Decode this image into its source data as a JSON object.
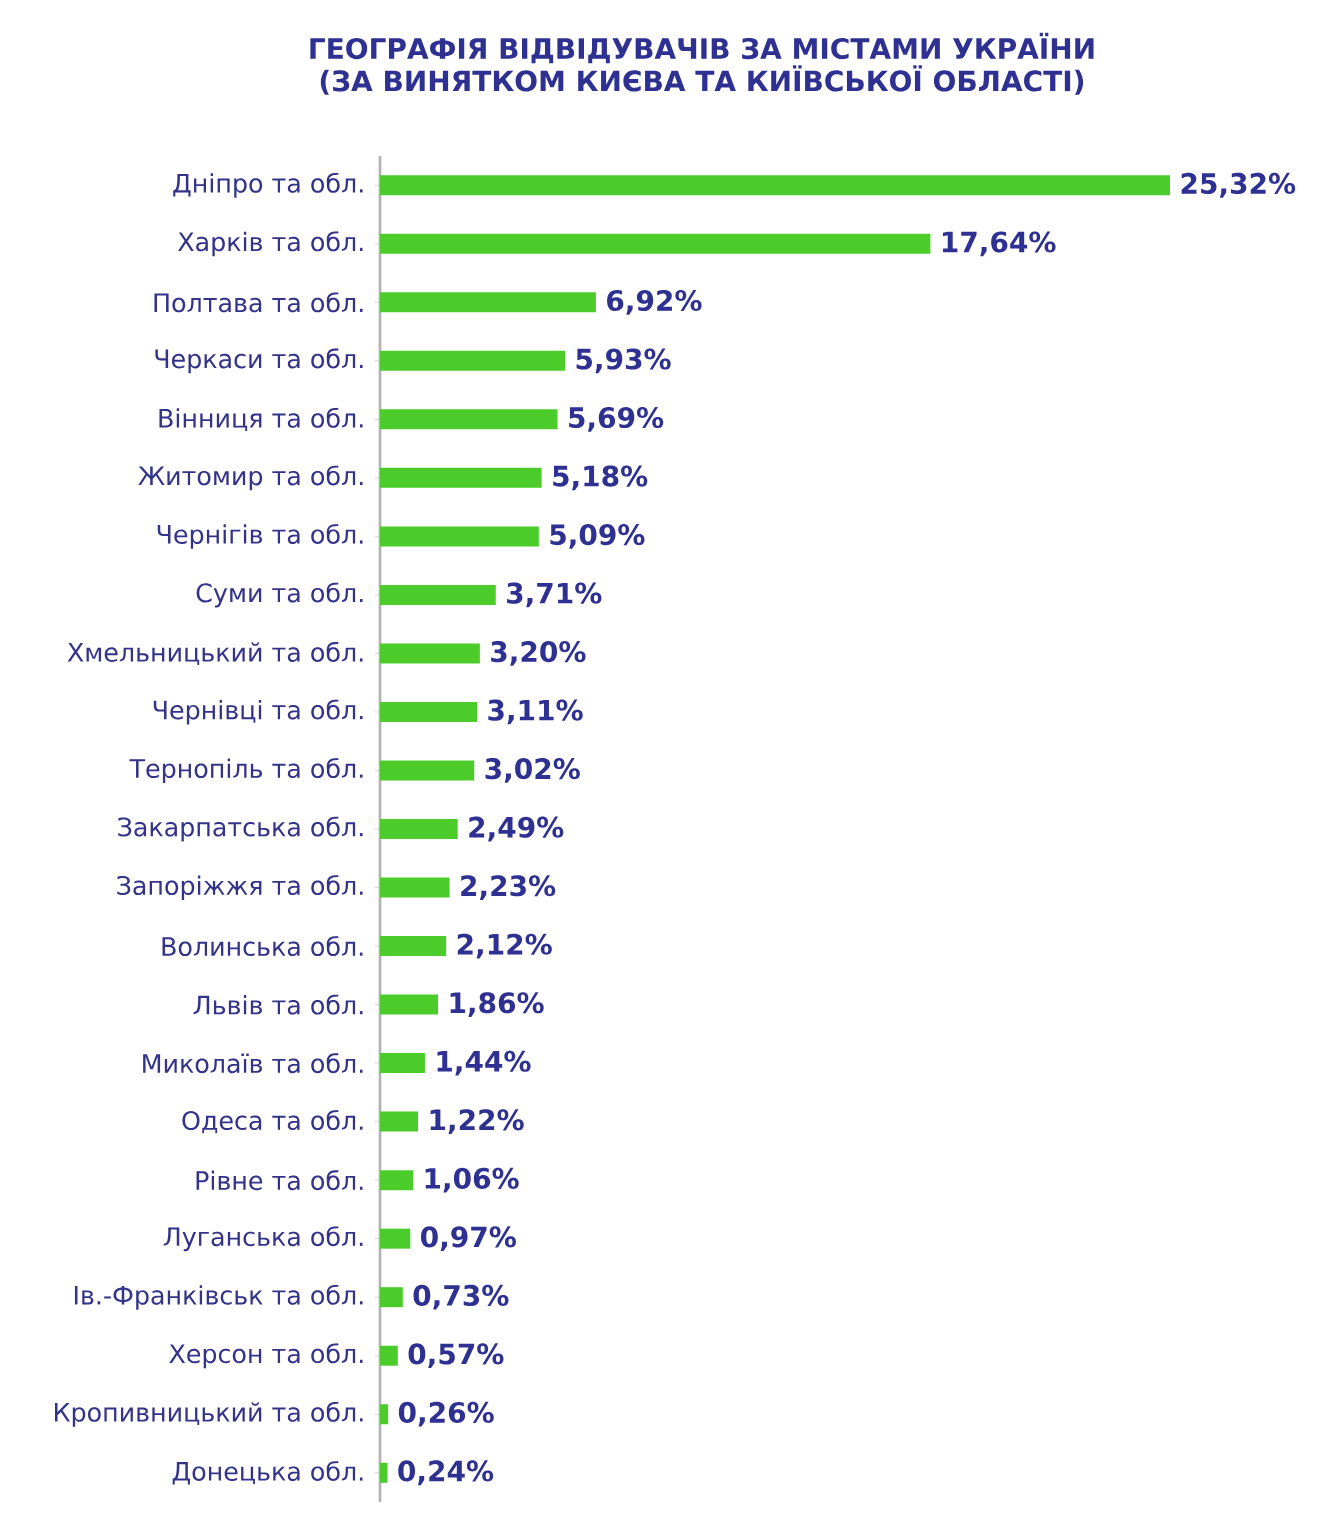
{
  "chart_data": {
    "type": "bar",
    "orientation": "horizontal",
    "title": "ГЕОГРАФІЯ ВІДВІДУВАЧІВ ЗА МІСТАМИ УКРАЇНИ",
    "subtitle": "(ЗА ВИНЯТКОМ КИЄВА ТА КИЇВСЬКОЇ ОБЛАСТІ)",
    "categories": [
      "Дніпро та обл.",
      "Харків та обл.",
      "Полтава та обл.",
      "Черкаси та обл.",
      "Вінниця та обл.",
      "Житомир та обл.",
      "Чернігів та обл.",
      "Суми та обл.",
      "Хмельницький та обл.",
      "Чернівці та обл.",
      "Тернопіль та обл.",
      "Закарпатська обл.",
      "Запоріжжя та обл.",
      "Волинська обл.",
      "Львів та обл.",
      "Миколаїв та обл.",
      "Одеса та обл.",
      "Рівне та обл.",
      "Луганська обл.",
      "Ів.-Франківськ та обл.",
      "Херсон та обл.",
      "Кропивницький та обл.",
      "Донецька обл."
    ],
    "values": [
      25.32,
      17.64,
      6.92,
      5.93,
      5.69,
      5.18,
      5.09,
      3.71,
      3.2,
      3.11,
      3.02,
      2.49,
      2.23,
      2.12,
      1.86,
      1.44,
      1.22,
      1.06,
      0.97,
      0.73,
      0.57,
      0.26,
      0.24
    ],
    "value_labels": [
      "25,32%",
      "17,64%",
      "6,92%",
      "5,93%",
      "5,69%",
      "5,18%",
      "5,09%",
      "3,71%",
      "3,20%",
      "3,11%",
      "3,02%",
      "2,49%",
      "2,23%",
      "2,12%",
      "1,86%",
      "1,44%",
      "1,22%",
      "1,06%",
      "0,97%",
      "0,73%",
      "0,57%",
      "0,26%",
      "0,24%"
    ],
    "color": "#4ccc2a"
  }
}
